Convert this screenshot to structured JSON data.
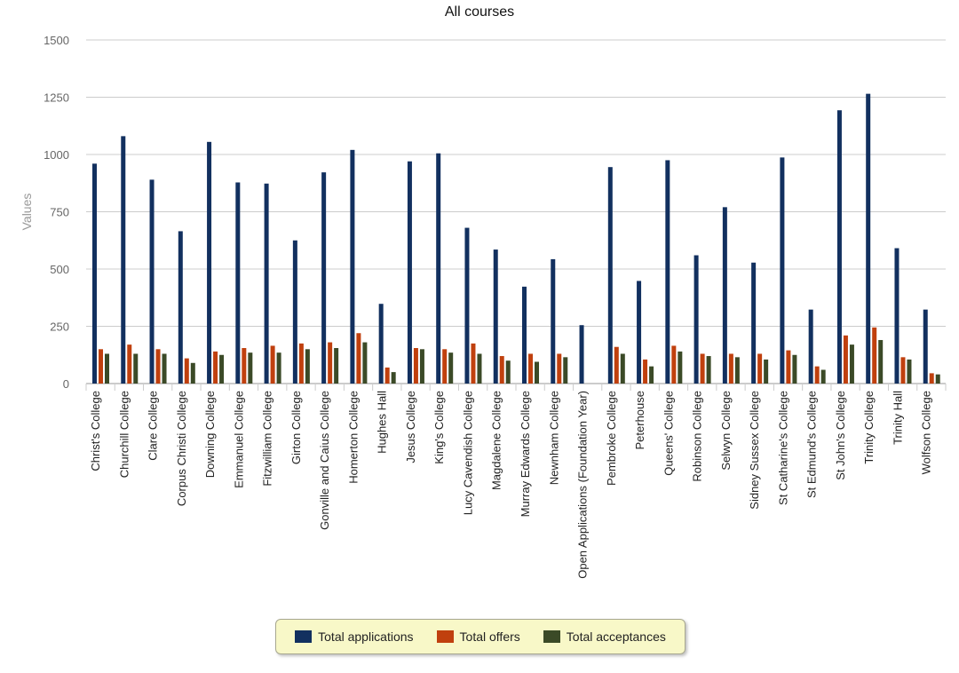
{
  "chart_data": {
    "type": "bar",
    "title": "All courses",
    "xlabel": "",
    "ylabel": "Values",
    "ylim": [
      0,
      1500
    ],
    "yticks": [
      0,
      250,
      500,
      750,
      1000,
      1250,
      1500
    ],
    "grid": true,
    "legend_position": "bottom",
    "categories": [
      "Christ's College",
      "Churchill College",
      "Clare College",
      "Corpus Christi College",
      "Downing College",
      "Emmanuel College",
      "Fitzwilliam College",
      "Girton College",
      "Gonville and Caius College",
      "Homerton College",
      "Hughes Hall",
      "Jesus College",
      "King's College",
      "Lucy Cavendish College",
      "Magdalene College",
      "Murray Edwards College",
      "Newnham College",
      "Open Applications (Foundation Year)",
      "Pembroke College",
      "Peterhouse",
      "Queens' College",
      "Robinson College",
      "Selwyn College",
      "Sidney Sussex College",
      "St Catharine's College",
      "St Edmund's College",
      "St John's College",
      "Trinity College",
      "Trinity Hall",
      "Wolfson College"
    ],
    "series": [
      {
        "name": "Total applications",
        "color": "#12305f",
        "values": [
          960,
          1080,
          890,
          665,
          1055,
          878,
          873,
          625,
          922,
          1020,
          348,
          970,
          1005,
          680,
          585,
          423,
          543,
          255,
          945,
          448,
          975,
          560,
          770,
          528,
          987,
          323,
          1193,
          1265,
          591,
          323
        ]
      },
      {
        "name": "Total offers",
        "color": "#c0400e",
        "values": [
          150,
          170,
          150,
          110,
          140,
          155,
          165,
          175,
          180,
          220,
          70,
          155,
          150,
          175,
          120,
          130,
          130,
          0,
          160,
          105,
          165,
          130,
          130,
          130,
          145,
          75,
          210,
          245,
          115,
          45
        ]
      },
      {
        "name": "Total acceptances",
        "color": "#3b4a27",
        "values": [
          130,
          130,
          130,
          90,
          125,
          135,
          135,
          150,
          155,
          180,
          50,
          150,
          135,
          130,
          100,
          95,
          115,
          0,
          130,
          75,
          140,
          120,
          115,
          105,
          125,
          60,
          170,
          190,
          105,
          40
        ]
      }
    ]
  }
}
